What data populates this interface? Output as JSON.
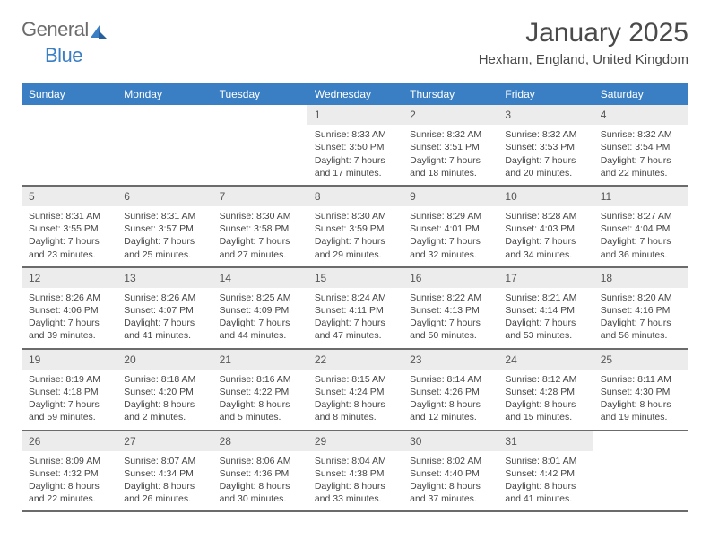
{
  "logo": {
    "part1": "General",
    "part2": "Blue"
  },
  "title": "January 2025",
  "location": "Hexham, England, United Kingdom",
  "colors": {
    "header_bg": "#3a7fc4",
    "header_text": "#ffffff",
    "daynum_bg": "#ececec",
    "row_divider": "#6b6b6b",
    "body_text": "#444444"
  },
  "weekdays": [
    "Sunday",
    "Monday",
    "Tuesday",
    "Wednesday",
    "Thursday",
    "Friday",
    "Saturday"
  ],
  "weeks": [
    [
      null,
      null,
      null,
      {
        "n": "1",
        "sr": "Sunrise: 8:33 AM",
        "ss": "Sunset: 3:50 PM",
        "d1": "Daylight: 7 hours",
        "d2": "and 17 minutes."
      },
      {
        "n": "2",
        "sr": "Sunrise: 8:32 AM",
        "ss": "Sunset: 3:51 PM",
        "d1": "Daylight: 7 hours",
        "d2": "and 18 minutes."
      },
      {
        "n": "3",
        "sr": "Sunrise: 8:32 AM",
        "ss": "Sunset: 3:53 PM",
        "d1": "Daylight: 7 hours",
        "d2": "and 20 minutes."
      },
      {
        "n": "4",
        "sr": "Sunrise: 8:32 AM",
        "ss": "Sunset: 3:54 PM",
        "d1": "Daylight: 7 hours",
        "d2": "and 22 minutes."
      }
    ],
    [
      {
        "n": "5",
        "sr": "Sunrise: 8:31 AM",
        "ss": "Sunset: 3:55 PM",
        "d1": "Daylight: 7 hours",
        "d2": "and 23 minutes."
      },
      {
        "n": "6",
        "sr": "Sunrise: 8:31 AM",
        "ss": "Sunset: 3:57 PM",
        "d1": "Daylight: 7 hours",
        "d2": "and 25 minutes."
      },
      {
        "n": "7",
        "sr": "Sunrise: 8:30 AM",
        "ss": "Sunset: 3:58 PM",
        "d1": "Daylight: 7 hours",
        "d2": "and 27 minutes."
      },
      {
        "n": "8",
        "sr": "Sunrise: 8:30 AM",
        "ss": "Sunset: 3:59 PM",
        "d1": "Daylight: 7 hours",
        "d2": "and 29 minutes."
      },
      {
        "n": "9",
        "sr": "Sunrise: 8:29 AM",
        "ss": "Sunset: 4:01 PM",
        "d1": "Daylight: 7 hours",
        "d2": "and 32 minutes."
      },
      {
        "n": "10",
        "sr": "Sunrise: 8:28 AM",
        "ss": "Sunset: 4:03 PM",
        "d1": "Daylight: 7 hours",
        "d2": "and 34 minutes."
      },
      {
        "n": "11",
        "sr": "Sunrise: 8:27 AM",
        "ss": "Sunset: 4:04 PM",
        "d1": "Daylight: 7 hours",
        "d2": "and 36 minutes."
      }
    ],
    [
      {
        "n": "12",
        "sr": "Sunrise: 8:26 AM",
        "ss": "Sunset: 4:06 PM",
        "d1": "Daylight: 7 hours",
        "d2": "and 39 minutes."
      },
      {
        "n": "13",
        "sr": "Sunrise: 8:26 AM",
        "ss": "Sunset: 4:07 PM",
        "d1": "Daylight: 7 hours",
        "d2": "and 41 minutes."
      },
      {
        "n": "14",
        "sr": "Sunrise: 8:25 AM",
        "ss": "Sunset: 4:09 PM",
        "d1": "Daylight: 7 hours",
        "d2": "and 44 minutes."
      },
      {
        "n": "15",
        "sr": "Sunrise: 8:24 AM",
        "ss": "Sunset: 4:11 PM",
        "d1": "Daylight: 7 hours",
        "d2": "and 47 minutes."
      },
      {
        "n": "16",
        "sr": "Sunrise: 8:22 AM",
        "ss": "Sunset: 4:13 PM",
        "d1": "Daylight: 7 hours",
        "d2": "and 50 minutes."
      },
      {
        "n": "17",
        "sr": "Sunrise: 8:21 AM",
        "ss": "Sunset: 4:14 PM",
        "d1": "Daylight: 7 hours",
        "d2": "and 53 minutes."
      },
      {
        "n": "18",
        "sr": "Sunrise: 8:20 AM",
        "ss": "Sunset: 4:16 PM",
        "d1": "Daylight: 7 hours",
        "d2": "and 56 minutes."
      }
    ],
    [
      {
        "n": "19",
        "sr": "Sunrise: 8:19 AM",
        "ss": "Sunset: 4:18 PM",
        "d1": "Daylight: 7 hours",
        "d2": "and 59 minutes."
      },
      {
        "n": "20",
        "sr": "Sunrise: 8:18 AM",
        "ss": "Sunset: 4:20 PM",
        "d1": "Daylight: 8 hours",
        "d2": "and 2 minutes."
      },
      {
        "n": "21",
        "sr": "Sunrise: 8:16 AM",
        "ss": "Sunset: 4:22 PM",
        "d1": "Daylight: 8 hours",
        "d2": "and 5 minutes."
      },
      {
        "n": "22",
        "sr": "Sunrise: 8:15 AM",
        "ss": "Sunset: 4:24 PM",
        "d1": "Daylight: 8 hours",
        "d2": "and 8 minutes."
      },
      {
        "n": "23",
        "sr": "Sunrise: 8:14 AM",
        "ss": "Sunset: 4:26 PM",
        "d1": "Daylight: 8 hours",
        "d2": "and 12 minutes."
      },
      {
        "n": "24",
        "sr": "Sunrise: 8:12 AM",
        "ss": "Sunset: 4:28 PM",
        "d1": "Daylight: 8 hours",
        "d2": "and 15 minutes."
      },
      {
        "n": "25",
        "sr": "Sunrise: 8:11 AM",
        "ss": "Sunset: 4:30 PM",
        "d1": "Daylight: 8 hours",
        "d2": "and 19 minutes."
      }
    ],
    [
      {
        "n": "26",
        "sr": "Sunrise: 8:09 AM",
        "ss": "Sunset: 4:32 PM",
        "d1": "Daylight: 8 hours",
        "d2": "and 22 minutes."
      },
      {
        "n": "27",
        "sr": "Sunrise: 8:07 AM",
        "ss": "Sunset: 4:34 PM",
        "d1": "Daylight: 8 hours",
        "d2": "and 26 minutes."
      },
      {
        "n": "28",
        "sr": "Sunrise: 8:06 AM",
        "ss": "Sunset: 4:36 PM",
        "d1": "Daylight: 8 hours",
        "d2": "and 30 minutes."
      },
      {
        "n": "29",
        "sr": "Sunrise: 8:04 AM",
        "ss": "Sunset: 4:38 PM",
        "d1": "Daylight: 8 hours",
        "d2": "and 33 minutes."
      },
      {
        "n": "30",
        "sr": "Sunrise: 8:02 AM",
        "ss": "Sunset: 4:40 PM",
        "d1": "Daylight: 8 hours",
        "d2": "and 37 minutes."
      },
      {
        "n": "31",
        "sr": "Sunrise: 8:01 AM",
        "ss": "Sunset: 4:42 PM",
        "d1": "Daylight: 8 hours",
        "d2": "and 41 minutes."
      },
      null
    ]
  ]
}
